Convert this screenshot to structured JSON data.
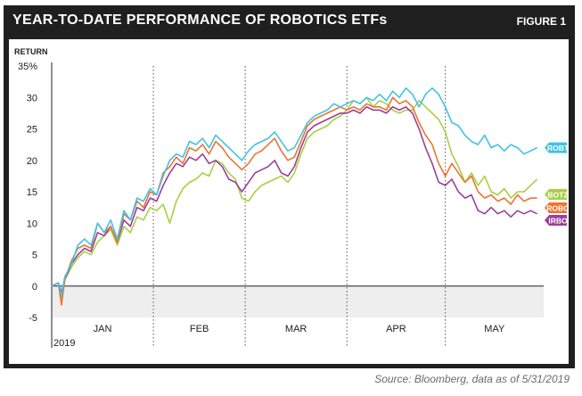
{
  "header": {
    "title": "YEAR-TO-DATE PERFORMANCE OF ROBOTICS ETFs",
    "figure_label": "FIGURE 1"
  },
  "source_note": "Source: Bloomberg, data as of 5/31/2019",
  "colors": {
    "ROBT": "#3fc3e6",
    "BOTZ": "#a9cf45",
    "ROBO": "#ee7330",
    "IRBO": "#9b3f98",
    "negative_band": "#eeeeee"
  },
  "chart_data": {
    "type": "line",
    "title": "YEAR-TO-DATE PERFORMANCE OF ROBOTICS ETFs",
    "ylabel": "RETURN",
    "y_unit_label": "35%",
    "ylim": [
      -5,
      35
    ],
    "yticks": [
      -5,
      0,
      5,
      10,
      15,
      20,
      25,
      30,
      35
    ],
    "xlim": [
      0,
      150
    ],
    "months": [
      {
        "label": "JAN",
        "start": 0,
        "end": 31
      },
      {
        "label": "FEB",
        "start": 31,
        "end": 59
      },
      {
        "label": "MAR",
        "start": 59,
        "end": 90
      },
      {
        "label": "APR",
        "start": 90,
        "end": 120
      },
      {
        "label": "MAY",
        "start": 120,
        "end": 150
      }
    ],
    "year_label": "2019",
    "grid": "vertical dotted month separators",
    "x_day": [
      0,
      2,
      3,
      4,
      6,
      8,
      10,
      12,
      14,
      16,
      18,
      20,
      22,
      24,
      26,
      28,
      30,
      32,
      34,
      36,
      38,
      40,
      42,
      44,
      46,
      48,
      50,
      52,
      54,
      56,
      58,
      60,
      62,
      64,
      66,
      68,
      70,
      72,
      74,
      76,
      78,
      80,
      82,
      84,
      86,
      88,
      90,
      92,
      94,
      96,
      98,
      100,
      102,
      104,
      106,
      108,
      110,
      112,
      114,
      116,
      118,
      120,
      122,
      124,
      126,
      128,
      130,
      132,
      134,
      136,
      138,
      140,
      142,
      144,
      146,
      148
    ],
    "series": [
      {
        "name": "ROBT",
        "end_value": 22,
        "values": [
          0,
          0.5,
          -1.5,
          1.5,
          3.5,
          6.5,
          7.5,
          6.5,
          10,
          8.5,
          10.5,
          7.5,
          12,
          10.5,
          14,
          13.5,
          15.5,
          14.5,
          17.5,
          20,
          21,
          20.5,
          23,
          22.5,
          23.5,
          22,
          24,
          23,
          22,
          21,
          20,
          21.5,
          22.5,
          23,
          23.5,
          24.5,
          23,
          21.5,
          22,
          24,
          26,
          27,
          27.5,
          28,
          29,
          28.5,
          29,
          29.5,
          29,
          30,
          29.5,
          30.5,
          29.5,
          31,
          30,
          31.5,
          30.5,
          28.5,
          30.5,
          31.5,
          30.5,
          28.5,
          26,
          25.5,
          24,
          23,
          22.5,
          24,
          22,
          22.5,
          21.5,
          22.5,
          22,
          21,
          21.5,
          22
        ]
      },
      {
        "name": "BOTZ",
        "end_value": 17,
        "values": [
          0,
          0.5,
          -2,
          1,
          3,
          4.5,
          5.5,
          5,
          7,
          8,
          9,
          6.5,
          9.5,
          8.5,
          11,
          10.5,
          12.5,
          12,
          13,
          10,
          13.5,
          15.5,
          16.5,
          17,
          18,
          17.5,
          20,
          19.5,
          18,
          17,
          14,
          13.5,
          15,
          16,
          16.5,
          17,
          17.5,
          16.5,
          18,
          21,
          23.5,
          24.5,
          25,
          25.5,
          26.5,
          27,
          28,
          29.5,
          29,
          30,
          28.5,
          29.5,
          29,
          28,
          27.5,
          28,
          28,
          29.5,
          28.5,
          27.5,
          26.5,
          24.5,
          21,
          19,
          16.5,
          18,
          16,
          17.5,
          15,
          14.5,
          15.5,
          14,
          15,
          15,
          16,
          17
        ]
      },
      {
        "name": "ROBO",
        "end_value": 14,
        "values": [
          0,
          0.5,
          -3,
          1,
          4,
          6,
          6.5,
          6,
          10,
          8.5,
          9.5,
          7,
          11.5,
          10.5,
          13.5,
          12.5,
          15,
          14.5,
          18,
          19,
          20.5,
          19.5,
          22,
          21.5,
          22.5,
          21,
          23,
          22,
          20.5,
          19.5,
          18.5,
          19.5,
          21,
          21.5,
          22.5,
          23.5,
          21.5,
          20,
          20.5,
          23,
          25.5,
          26.5,
          27,
          27.5,
          28,
          28.5,
          28,
          28.5,
          28,
          29,
          28.5,
          28.5,
          28,
          30,
          29,
          29.5,
          28.5,
          26,
          24,
          22.5,
          19.5,
          17.5,
          19.5,
          18,
          16.5,
          17.5,
          15,
          14,
          14.5,
          13.5,
          14,
          13,
          14.5,
          13.5,
          14,
          14
        ]
      },
      {
        "name": "IRBO",
        "end_value": 11.5,
        "values": [
          0,
          0.5,
          -1,
          1,
          3.5,
          5,
          6,
          5.5,
          8.5,
          8,
          9.5,
          7,
          10.5,
          9.5,
          12.5,
          12,
          14,
          13.5,
          16,
          18,
          19.5,
          19,
          20.5,
          20,
          21,
          19.5,
          20,
          19,
          17,
          16.5,
          15,
          16.5,
          18,
          18.5,
          19,
          20,
          18,
          17.5,
          19,
          22,
          24.5,
          25.5,
          26,
          26.5,
          27,
          27.5,
          27.5,
          28,
          27.5,
          28.5,
          28,
          28,
          27.5,
          28.5,
          28,
          28.5,
          27.5,
          25,
          22,
          19.5,
          16.5,
          16,
          17,
          15,
          14,
          14.5,
          12,
          11.5,
          12.5,
          11.5,
          12,
          11,
          12,
          11.5,
          12,
          11.5
        ]
      }
    ]
  }
}
